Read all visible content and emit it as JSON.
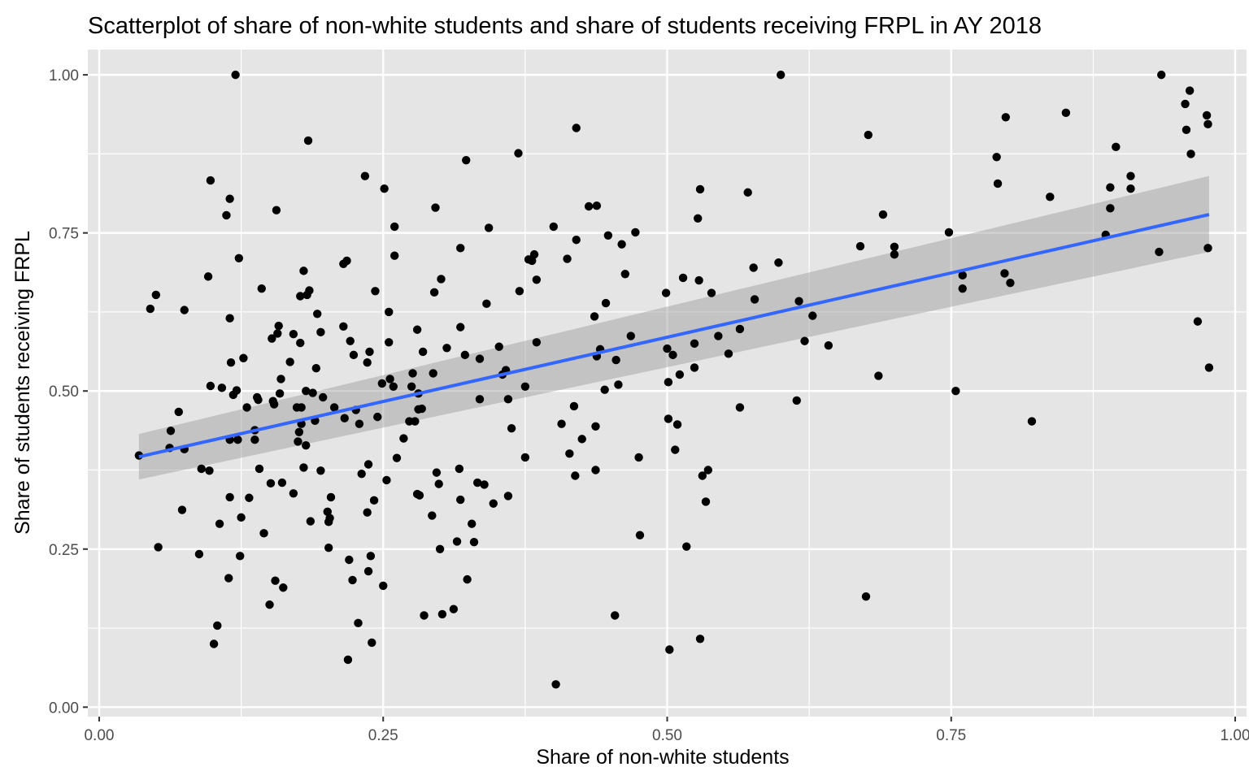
{
  "chart_data": {
    "type": "scatter",
    "title": "Scatterplot of share of non-white students and share of students receiving FRPL in AY 2018",
    "xlabel": "Share of non-white students",
    "ylabel": "Share of students receiving FRPL",
    "xlim": [
      -0.01,
      1.01
    ],
    "ylim": [
      -0.015,
      1.04
    ],
    "x_ticks": [
      0,
      0.25,
      0.5,
      0.75,
      1.0
    ],
    "x_tick_labels": [
      "0.00",
      "0.25",
      "0.50",
      "0.75",
      "1.00"
    ],
    "y_ticks": [
      0,
      0.25,
      0.5,
      0.75,
      1.0
    ],
    "y_tick_labels": [
      "0.00",
      "0.25",
      "0.50",
      "0.75",
      "1.00"
    ],
    "grid": true,
    "legend": "none",
    "colors": {
      "panel_background": "#e5e5e5",
      "grid": "#ffffff",
      "points": "#000000",
      "trend_line": "#3366ff",
      "confidence_band": "#9a9a9a"
    },
    "series": [
      {
        "type": "scatter",
        "points": [
          [
            0.035,
            0.398
          ],
          [
            0.045,
            0.63
          ],
          [
            0.05,
            0.652
          ],
          [
            0.052,
            0.253
          ],
          [
            0.062,
            0.41
          ],
          [
            0.063,
            0.437
          ],
          [
            0.07,
            0.467
          ],
          [
            0.073,
            0.312
          ],
          [
            0.075,
            0.628
          ],
          [
            0.075,
            0.408
          ],
          [
            0.088,
            0.242
          ],
          [
            0.09,
            0.377
          ],
          [
            0.096,
            0.681
          ],
          [
            0.097,
            0.374
          ],
          [
            0.098,
            0.833
          ],
          [
            0.098,
            0.508
          ],
          [
            0.101,
            0.1
          ],
          [
            0.104,
            0.129
          ],
          [
            0.106,
            0.29
          ],
          [
            0.108,
            0.505
          ],
          [
            0.112,
            0.778
          ],
          [
            0.114,
            0.204
          ],
          [
            0.115,
            0.615
          ],
          [
            0.115,
            0.804
          ],
          [
            0.115,
            0.332
          ],
          [
            0.115,
            0.423
          ],
          [
            0.116,
            0.545
          ],
          [
            0.118,
            0.494
          ],
          [
            0.12,
            1.0
          ],
          [
            0.121,
            0.501
          ],
          [
            0.122,
            0.423
          ],
          [
            0.123,
            0.71
          ],
          [
            0.124,
            0.239
          ],
          [
            0.125,
            0.3
          ],
          [
            0.127,
            0.552
          ],
          [
            0.13,
            0.474
          ],
          [
            0.132,
            0.331
          ],
          [
            0.137,
            0.438
          ],
          [
            0.137,
            0.423
          ],
          [
            0.139,
            0.49
          ],
          [
            0.14,
            0.486
          ],
          [
            0.141,
            0.377
          ],
          [
            0.143,
            0.662
          ],
          [
            0.145,
            0.275
          ],
          [
            0.15,
            0.162
          ],
          [
            0.151,
            0.354
          ],
          [
            0.152,
            0.583
          ],
          [
            0.153,
            0.484
          ],
          [
            0.154,
            0.479
          ],
          [
            0.155,
            0.2
          ],
          [
            0.156,
            0.786
          ],
          [
            0.157,
            0.591
          ],
          [
            0.158,
            0.603
          ],
          [
            0.159,
            0.496
          ],
          [
            0.16,
            0.519
          ],
          [
            0.161,
            0.355
          ],
          [
            0.162,
            0.189
          ],
          [
            0.168,
            0.546
          ],
          [
            0.171,
            0.59
          ],
          [
            0.171,
            0.338
          ],
          [
            0.174,
            0.474
          ],
          [
            0.175,
            0.42
          ],
          [
            0.176,
            0.435
          ],
          [
            0.177,
            0.65
          ],
          [
            0.177,
            0.576
          ],
          [
            0.178,
            0.448
          ],
          [
            0.178,
            0.474
          ],
          [
            0.18,
            0.379
          ],
          [
            0.18,
            0.69
          ],
          [
            0.182,
            0.414
          ],
          [
            0.182,
            0.5
          ],
          [
            0.183,
            0.652
          ],
          [
            0.184,
            0.896
          ],
          [
            0.185,
            0.659
          ],
          [
            0.186,
            0.294
          ],
          [
            0.188,
            0.497
          ],
          [
            0.19,
            0.453
          ],
          [
            0.191,
            0.536
          ],
          [
            0.192,
            0.622
          ],
          [
            0.195,
            0.374
          ],
          [
            0.195,
            0.593
          ],
          [
            0.197,
            0.49
          ],
          [
            0.201,
            0.309
          ],
          [
            0.202,
            0.293
          ],
          [
            0.202,
            0.252
          ],
          [
            0.203,
            0.299
          ],
          [
            0.204,
            0.332
          ],
          [
            0.207,
            0.474
          ],
          [
            0.215,
            0.701
          ],
          [
            0.215,
            0.602
          ],
          [
            0.216,
            0.457
          ],
          [
            0.218,
            0.706
          ],
          [
            0.219,
            0.075
          ],
          [
            0.22,
            0.233
          ],
          [
            0.221,
            0.579
          ],
          [
            0.223,
            0.201
          ],
          [
            0.224,
            0.557
          ],
          [
            0.226,
            0.47
          ],
          [
            0.228,
            0.133
          ],
          [
            0.229,
            0.448
          ],
          [
            0.231,
            0.369
          ],
          [
            0.234,
            0.84
          ],
          [
            0.236,
            0.308
          ],
          [
            0.236,
            0.545
          ],
          [
            0.237,
            0.215
          ],
          [
            0.237,
            0.384
          ],
          [
            0.238,
            0.562
          ],
          [
            0.239,
            0.239
          ],
          [
            0.24,
            0.102
          ],
          [
            0.242,
            0.327
          ],
          [
            0.243,
            0.658
          ],
          [
            0.245,
            0.459
          ],
          [
            0.249,
            0.512
          ],
          [
            0.25,
            0.192
          ],
          [
            0.251,
            0.82
          ],
          [
            0.253,
            0.359
          ],
          [
            0.255,
            0.577
          ],
          [
            0.255,
            0.625
          ],
          [
            0.256,
            0.519
          ],
          [
            0.259,
            0.507
          ],
          [
            0.26,
            0.76
          ],
          [
            0.26,
            0.714
          ],
          [
            0.262,
            0.394
          ],
          [
            0.268,
            0.425
          ],
          [
            0.273,
            0.452
          ],
          [
            0.275,
            0.507
          ],
          [
            0.276,
            0.528
          ],
          [
            0.278,
            0.452
          ],
          [
            0.28,
            0.597
          ],
          [
            0.28,
            0.337
          ],
          [
            0.281,
            0.471
          ],
          [
            0.281,
            0.496
          ],
          [
            0.282,
            0.335
          ],
          [
            0.284,
            0.472
          ],
          [
            0.285,
            0.562
          ],
          [
            0.286,
            0.145
          ],
          [
            0.293,
            0.303
          ],
          [
            0.294,
            0.528
          ],
          [
            0.295,
            0.656
          ],
          [
            0.296,
            0.79
          ],
          [
            0.297,
            0.371
          ],
          [
            0.299,
            0.353
          ],
          [
            0.3,
            0.25
          ],
          [
            0.301,
            0.677
          ],
          [
            0.302,
            0.147
          ],
          [
            0.306,
            0.568
          ],
          [
            0.312,
            0.155
          ],
          [
            0.315,
            0.262
          ],
          [
            0.317,
            0.377
          ],
          [
            0.318,
            0.601
          ],
          [
            0.318,
            0.726
          ],
          [
            0.318,
            0.328
          ],
          [
            0.322,
            0.557
          ],
          [
            0.323,
            0.865
          ],
          [
            0.324,
            0.202
          ],
          [
            0.328,
            0.29
          ],
          [
            0.33,
            0.261
          ],
          [
            0.333,
            0.355
          ],
          [
            0.335,
            0.487
          ],
          [
            0.335,
            0.551
          ],
          [
            0.339,
            0.352
          ],
          [
            0.341,
            0.638
          ],
          [
            0.343,
            0.758
          ],
          [
            0.347,
            0.322
          ],
          [
            0.352,
            0.57
          ],
          [
            0.355,
            0.526
          ],
          [
            0.358,
            0.533
          ],
          [
            0.36,
            0.334
          ],
          [
            0.36,
            0.487
          ],
          [
            0.363,
            0.441
          ],
          [
            0.369,
            0.876
          ],
          [
            0.37,
            0.658
          ],
          [
            0.375,
            0.507
          ],
          [
            0.375,
            0.395
          ],
          [
            0.378,
            0.708
          ],
          [
            0.381,
            0.706
          ],
          [
            0.383,
            0.716
          ],
          [
            0.385,
            0.676
          ],
          [
            0.385,
            0.577
          ],
          [
            0.4,
            0.76
          ],
          [
            0.402,
            0.036
          ],
          [
            0.407,
            0.448
          ],
          [
            0.412,
            0.709
          ],
          [
            0.414,
            0.401
          ],
          [
            0.418,
            0.476
          ],
          [
            0.419,
            0.366
          ],
          [
            0.42,
            0.739
          ],
          [
            0.42,
            0.916
          ],
          [
            0.425,
            0.424
          ],
          [
            0.431,
            0.792
          ],
          [
            0.436,
            0.618
          ],
          [
            0.437,
            0.375
          ],
          [
            0.437,
            0.444
          ],
          [
            0.438,
            0.555
          ],
          [
            0.438,
            0.793
          ],
          [
            0.441,
            0.566
          ],
          [
            0.445,
            0.502
          ],
          [
            0.446,
            0.639
          ],
          [
            0.448,
            0.746
          ],
          [
            0.454,
            0.145
          ],
          [
            0.455,
            0.549
          ],
          [
            0.457,
            0.51
          ],
          [
            0.46,
            0.732
          ],
          [
            0.463,
            0.685
          ],
          [
            0.468,
            0.587
          ],
          [
            0.472,
            0.751
          ],
          [
            0.475,
            0.395
          ],
          [
            0.476,
            0.272
          ],
          [
            0.499,
            0.655
          ],
          [
            0.5,
            0.567
          ],
          [
            0.501,
            0.514
          ],
          [
            0.501,
            0.456
          ],
          [
            0.502,
            0.091
          ],
          [
            0.505,
            0.557
          ],
          [
            0.507,
            0.407
          ],
          [
            0.509,
            0.447
          ],
          [
            0.511,
            0.526
          ],
          [
            0.514,
            0.679
          ],
          [
            0.517,
            0.254
          ],
          [
            0.524,
            0.537
          ],
          [
            0.524,
            0.575
          ],
          [
            0.527,
            0.773
          ],
          [
            0.528,
            0.675
          ],
          [
            0.529,
            0.819
          ],
          [
            0.529,
            0.108
          ],
          [
            0.531,
            0.366
          ],
          [
            0.534,
            0.325
          ],
          [
            0.536,
            0.375
          ],
          [
            0.539,
            0.655
          ],
          [
            0.545,
            0.587
          ],
          [
            0.554,
            0.559
          ],
          [
            0.564,
            0.598
          ],
          [
            0.564,
            0.474
          ],
          [
            0.571,
            0.814
          ],
          [
            0.576,
            0.695
          ],
          [
            0.577,
            0.645
          ],
          [
            0.598,
            0.703
          ],
          [
            0.6,
            1.0
          ],
          [
            0.614,
            0.485
          ],
          [
            0.616,
            0.642
          ],
          [
            0.621,
            0.579
          ],
          [
            0.628,
            0.619
          ],
          [
            0.642,
            0.572
          ],
          [
            0.67,
            0.729
          ],
          [
            0.675,
            0.175
          ],
          [
            0.677,
            0.905
          ],
          [
            0.686,
            0.524
          ],
          [
            0.69,
            0.779
          ],
          [
            0.7,
            0.716
          ],
          [
            0.7,
            0.728
          ],
          [
            0.748,
            0.751
          ],
          [
            0.754,
            0.5
          ],
          [
            0.76,
            0.683
          ],
          [
            0.76,
            0.662
          ],
          [
            0.79,
            0.87
          ],
          [
            0.791,
            0.828
          ],
          [
            0.797,
            0.686
          ],
          [
            0.798,
            0.933
          ],
          [
            0.802,
            0.671
          ],
          [
            0.821,
            0.452
          ],
          [
            0.837,
            0.807
          ],
          [
            0.851,
            0.94
          ],
          [
            0.886,
            0.747
          ],
          [
            0.89,
            0.822
          ],
          [
            0.89,
            0.789
          ],
          [
            0.895,
            0.886
          ],
          [
            0.908,
            0.84
          ],
          [
            0.908,
            0.82
          ],
          [
            0.933,
            0.72
          ],
          [
            0.935,
            1.0
          ],
          [
            0.956,
            0.954
          ],
          [
            0.957,
            0.913
          ],
          [
            0.96,
            0.975
          ],
          [
            0.961,
            0.875
          ],
          [
            0.967,
            0.61
          ],
          [
            0.975,
            0.936
          ],
          [
            0.976,
            0.922
          ],
          [
            0.976,
            0.726
          ],
          [
            0.977,
            0.537
          ]
        ]
      },
      {
        "type": "line",
        "smoothing": "linear",
        "x": [
          0.035,
          0.977
        ],
        "y": [
          0.396,
          0.779
        ],
        "band_lower": [
          0.36,
          0.72
        ],
        "band_upper": [
          0.432,
          0.84
        ]
      }
    ]
  }
}
